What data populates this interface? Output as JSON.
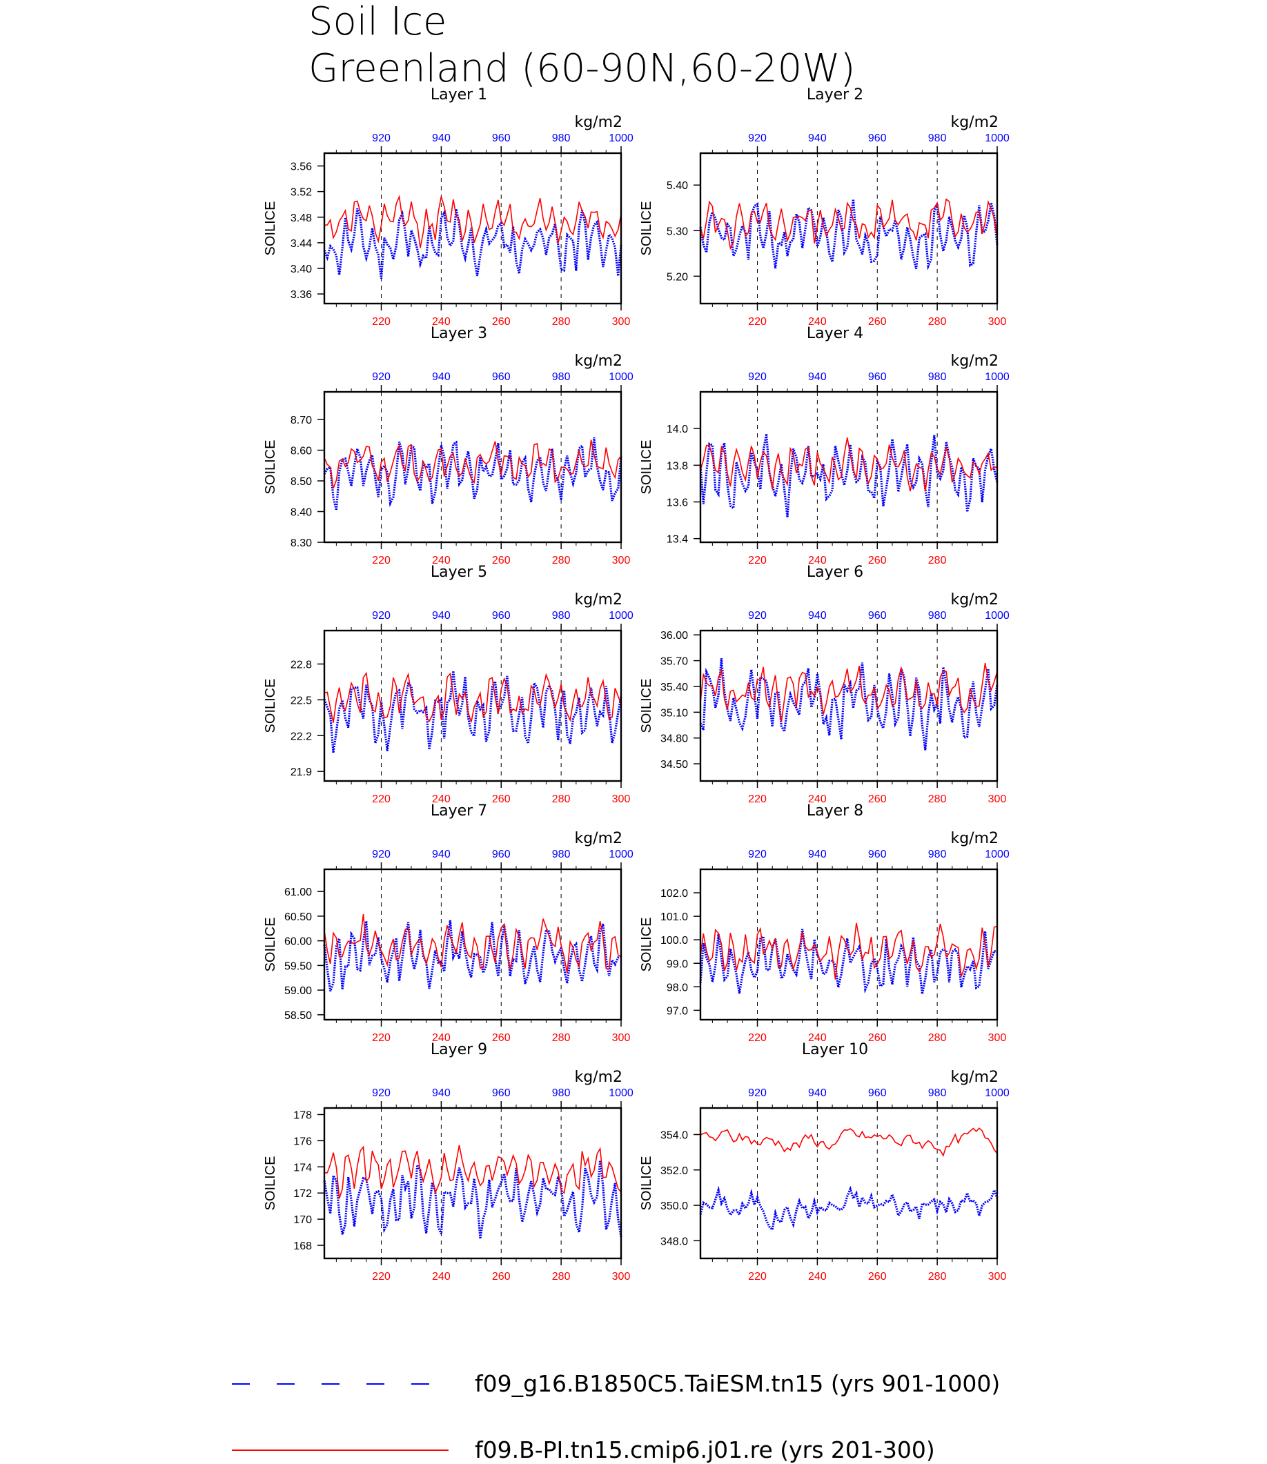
{
  "title_line1": "Soil Ice",
  "title_line2": "Greenland (60-90N,60-20W)",
  "colors": {
    "series_a": "#0000ff",
    "series_b": "#ff0000",
    "axis": "#000000",
    "grid": "#000000"
  },
  "legend": [
    {
      "label": "f09_g16.B1850C5.TaiESM.tn15 (yrs 901-1000)",
      "color": "#0000ff",
      "style": "dashed"
    },
    {
      "label": "f09.B-PI.tn15.cmip6.j01.re (yrs 201-300)",
      "color": "#ff0000",
      "style": "solid"
    }
  ],
  "chart_data": [
    {
      "type": "line",
      "title": "Layer 1",
      "units": "kg/m2",
      "ylabel": "SOILICE",
      "ylim": [
        3.345,
        3.58
      ],
      "yticks": [
        "3.36",
        "3.40",
        "3.44",
        "3.48",
        "3.52",
        "3.56"
      ],
      "xtop": [
        "920",
        "940",
        "960",
        "980",
        "1000"
      ],
      "xbot": [
        "220",
        "240",
        "260",
        "280",
        "300"
      ],
      "grid": "dashed vertical at 220, 240, 260, 280",
      "series": [
        {
          "name": "f09_g16.B1850C5.TaiESM.tn15 (yrs 901-1000)",
          "base": 3.44,
          "amp": 0.05,
          "seed": 11,
          "trend": 0
        },
        {
          "name": "f09.B-PI.tn15.cmip6.j01.re (yrs 201-300)",
          "base": 3.475,
          "amp": 0.035,
          "seed": 12,
          "trend": 0
        }
      ]
    },
    {
      "type": "line",
      "title": "Layer 2",
      "units": "kg/m2",
      "ylabel": "SOILICE",
      "ylim": [
        5.14,
        5.47
      ],
      "yticks": [
        "5.20",
        "5.30",
        "5.40"
      ],
      "xtop": [
        "920",
        "940",
        "960",
        "980",
        "1000"
      ],
      "xbot": [
        "220",
        "240",
        "260",
        "280",
        "300"
      ],
      "grid": "dashed vertical at 220, 240, 260, 280",
      "series": [
        {
          "name": "f09_g16.B1850C5.TaiESM.tn15 (yrs 901-1000)",
          "base": 5.29,
          "amp": 0.07,
          "seed": 21,
          "trend": 0
        },
        {
          "name": "f09.B-PI.tn15.cmip6.j01.re (yrs 201-300)",
          "base": 5.32,
          "amp": 0.05,
          "seed": 22,
          "trend": 0
        }
      ]
    },
    {
      "type": "line",
      "title": "Layer 3",
      "units": "kg/m2",
      "ylabel": "SOILICE",
      "ylim": [
        8.3,
        8.79
      ],
      "yticks": [
        "8.30",
        "8.40",
        "8.50",
        "8.60",
        "8.70"
      ],
      "xtop": [
        "920",
        "940",
        "960",
        "980",
        "1000"
      ],
      "xbot": [
        "220",
        "240",
        "260",
        "280",
        "300"
      ],
      "grid": "dashed vertical at 220, 240, 260, 280",
      "series": [
        {
          "name": "f09_g16.B1850C5.TaiESM.tn15 (yrs 901-1000)",
          "base": 8.53,
          "amp": 0.1,
          "seed": 31,
          "trend": 0
        },
        {
          "name": "f09.B-PI.tn15.cmip6.j01.re (yrs 201-300)",
          "base": 8.56,
          "amp": 0.07,
          "seed": 32,
          "trend": 0
        }
      ]
    },
    {
      "type": "line",
      "title": "Layer 4",
      "units": "kg/m2",
      "ylabel": "SOILICE",
      "ylim": [
        13.38,
        14.2
      ],
      "yticks": [
        "13.4",
        "13.6",
        "13.8",
        "14.0"
      ],
      "xtop": [
        "920",
        "940",
        "960",
        "980",
        "1000"
      ],
      "xbot": [
        "220",
        "240",
        "260",
        "280"
      ],
      "grid": "dashed vertical at 220, 240, 260, 280",
      "series": [
        {
          "name": "f09_g16.B1850C5.TaiESM.tn15 (yrs 901-1000)",
          "base": 13.75,
          "amp": 0.2,
          "seed": 41,
          "trend": 0
        },
        {
          "name": "f09.B-PI.tn15.cmip6.j01.re (yrs 201-300)",
          "base": 13.8,
          "amp": 0.13,
          "seed": 42,
          "trend": 0
        }
      ]
    },
    {
      "type": "line",
      "title": "Layer 5",
      "units": "kg/m2",
      "ylabel": "SOILICE",
      "ylim": [
        21.82,
        23.08
      ],
      "yticks": [
        "21.9",
        "22.2",
        "22.5",
        "22.8"
      ],
      "xtop": [
        "920",
        "940",
        "960",
        "980",
        "1000"
      ],
      "xbot": [
        "220",
        "240",
        "260",
        "280",
        "300"
      ],
      "grid": "dashed vertical at 220, 240, 260, 280",
      "series": [
        {
          "name": "f09_g16.B1850C5.TaiESM.tn15 (yrs 901-1000)",
          "base": 22.4,
          "amp": 0.3,
          "seed": 51,
          "trend": 0
        },
        {
          "name": "f09.B-PI.tn15.cmip6.j01.re (yrs 201-300)",
          "base": 22.5,
          "amp": 0.2,
          "seed": 52,
          "trend": 0
        }
      ]
    },
    {
      "type": "line",
      "title": "Layer 6",
      "units": "kg/m2",
      "ylabel": "SOILICE",
      "ylim": [
        34.3,
        36.05
      ],
      "yticks": [
        "34.50",
        "34.80",
        "35.10",
        "35.40",
        "35.70",
        "36.00"
      ],
      "xtop": [
        "920",
        "940",
        "960",
        "980",
        "1000"
      ],
      "xbot": [
        "220",
        "240",
        "260",
        "280",
        "300"
      ],
      "grid": "dashed vertical at 220, 240, 260, 280",
      "series": [
        {
          "name": "f09_g16.B1850C5.TaiESM.tn15 (yrs 901-1000)",
          "base": 35.2,
          "amp": 0.45,
          "seed": 61,
          "trend": 0
        },
        {
          "name": "f09.B-PI.tn15.cmip6.j01.re (yrs 201-300)",
          "base": 35.35,
          "amp": 0.3,
          "seed": 62,
          "trend": 0
        }
      ]
    },
    {
      "type": "line",
      "title": "Layer 7",
      "units": "kg/m2",
      "ylabel": "SOILICE",
      "ylim": [
        58.4,
        61.45
      ],
      "yticks": [
        "58.50",
        "59.00",
        "59.50",
        "60.00",
        "60.50",
        "61.00"
      ],
      "xtop": [
        "920",
        "940",
        "960",
        "980",
        "1000"
      ],
      "xbot": [
        "220",
        "240",
        "260",
        "280",
        "300"
      ],
      "grid": "dashed vertical at 220, 240, 260, 280",
      "series": [
        {
          "name": "f09_g16.B1850C5.TaiESM.tn15 (yrs 901-1000)",
          "base": 59.7,
          "amp": 0.7,
          "seed": 71,
          "trend": 0
        },
        {
          "name": "f09.B-PI.tn15.cmip6.j01.re (yrs 201-300)",
          "base": 59.9,
          "amp": 0.5,
          "seed": 72,
          "trend": 0
        }
      ]
    },
    {
      "type": "line",
      "title": "Layer 8",
      "units": "kg/m2",
      "ylabel": "SOILICE",
      "ylim": [
        96.6,
        103.0
      ],
      "yticks": [
        "97.0",
        "98.0",
        "99.0",
        "100.0",
        "101.0",
        "102.0"
      ],
      "xtop": [
        "920",
        "940",
        "960",
        "980",
        "1000"
      ],
      "xbot": [
        "220",
        "240",
        "260",
        "280",
        "300"
      ],
      "grid": "dashed vertical at 220, 240, 260, 280",
      "series": [
        {
          "name": "f09_g16.B1850C5.TaiESM.tn15 (yrs 901-1000)",
          "base": 99.0,
          "amp": 1.3,
          "seed": 81,
          "trend": 0
        },
        {
          "name": "f09.B-PI.tn15.cmip6.j01.re (yrs 201-300)",
          "base": 99.5,
          "amp": 1.0,
          "seed": 82,
          "trend": 0
        }
      ]
    },
    {
      "type": "line",
      "title": "Layer 9",
      "units": "kg/m2",
      "ylabel": "SOILICE",
      "ylim": [
        167.0,
        178.5
      ],
      "yticks": [
        "168",
        "170",
        "172",
        "174",
        "176",
        "178"
      ],
      "xtop": [
        "920",
        "940",
        "960",
        "980",
        "1000"
      ],
      "xbot": [
        "220",
        "240",
        "260",
        "280",
        "300"
      ],
      "grid": "dashed vertical at 220, 240, 260, 280",
      "series": [
        {
          "name": "f09_g16.B1850C5.TaiESM.tn15 (yrs 901-1000)",
          "base": 171.5,
          "amp": 2.6,
          "seed": 91,
          "trend": 0
        },
        {
          "name": "f09.B-PI.tn15.cmip6.j01.re (yrs 201-300)",
          "base": 173.8,
          "amp": 1.8,
          "seed": 92,
          "trend": 0
        }
      ]
    },
    {
      "type": "line",
      "title": "Layer 10",
      "units": "kg/m2",
      "ylabel": "SOILICE",
      "ylim": [
        347.0,
        355.5
      ],
      "yticks": [
        "348.0",
        "350.0",
        "352.0",
        "354.0"
      ],
      "xtop": [
        "920",
        "940",
        "960",
        "980",
        "1000"
      ],
      "xbot": [
        "220",
        "240",
        "260",
        "280",
        "300"
      ],
      "grid": "dashed vertical at 220, 240, 260, 280",
      "series": [
        {
          "name": "f09_g16.B1850C5.TaiESM.tn15 (yrs 901-1000)",
          "base": 350.0,
          "amp": 1.6,
          "seed": 101,
          "trend": 0,
          "smooth": true
        },
        {
          "name": "f09.B-PI.tn15.cmip6.j01.re (yrs 201-300)",
          "base": 353.6,
          "amp": 0.9,
          "seed": 102,
          "trend": 0,
          "smooth": true
        }
      ]
    }
  ]
}
